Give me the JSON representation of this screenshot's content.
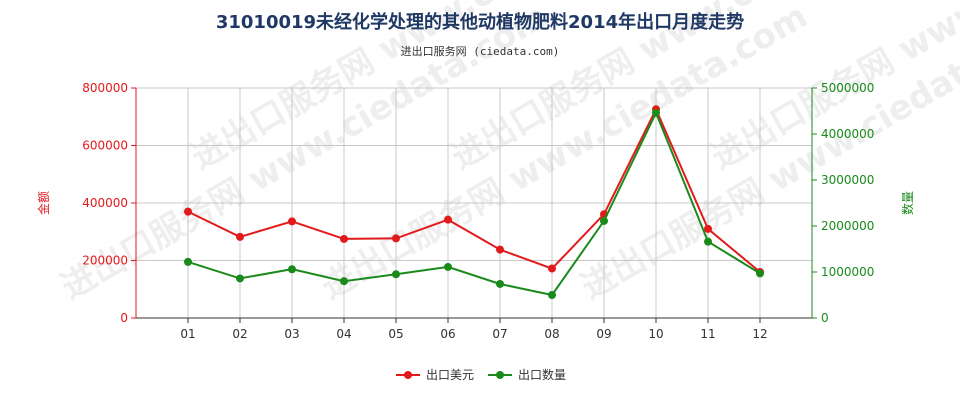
{
  "title": "31010019未经化学处理的其他动植物肥料2014年出口月度走势",
  "subtitle": "进出口服务网 (ciedata.com)",
  "watermark": "进出口服务网 www.ciedata.com",
  "colors": {
    "left": "#e31a1c",
    "right": "#1a8a1a",
    "title": "#1f3864"
  },
  "chart_data": {
    "type": "line",
    "categories": [
      "01",
      "02",
      "03",
      "04",
      "05",
      "06",
      "07",
      "08",
      "09",
      "10",
      "11",
      "12"
    ],
    "y_left": {
      "label": "金额",
      "ticks": [
        "0",
        "200000",
        "400000",
        "600000",
        "800000"
      ],
      "range": [
        0,
        800000
      ]
    },
    "y_right": {
      "label": "数量",
      "ticks": [
        "0",
        "1000000",
        "2000000",
        "3000000",
        "4000000",
        "5000000"
      ],
      "range": [
        0,
        5000000
      ]
    },
    "grid": true,
    "legend_position": "bottom",
    "series": [
      {
        "name": "出口美元",
        "axis": "left",
        "color": "#e31a1c",
        "values": [
          370000,
          282000,
          336000,
          275000,
          277000,
          342000,
          238000,
          172000,
          361000,
          726000,
          310000,
          160000
        ]
      },
      {
        "name": "出口数量",
        "axis": "right",
        "color": "#1a8a1a",
        "values": [
          1220000,
          860000,
          1060000,
          800000,
          950000,
          1110000,
          740000,
          500000,
          2110000,
          4460000,
          1660000,
          970000
        ]
      }
    ]
  }
}
